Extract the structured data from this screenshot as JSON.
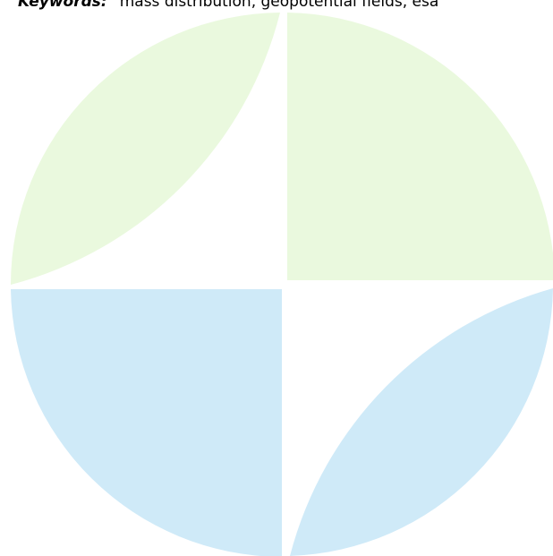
{
  "keywords": {
    "label": "Keywords:",
    "text": "mass distribution, geopotential fields, esa"
  }
}
